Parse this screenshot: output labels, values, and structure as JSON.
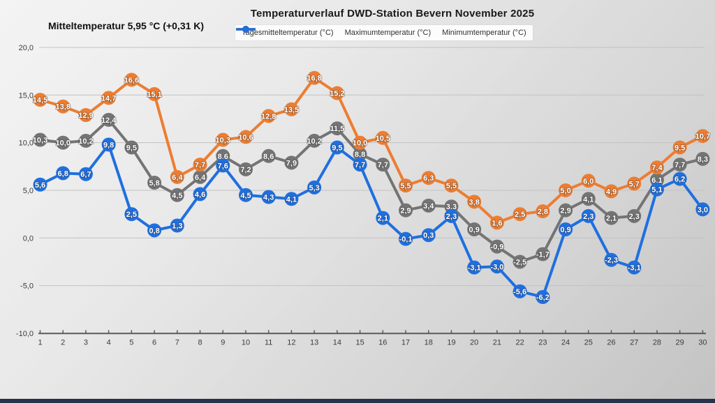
{
  "header": {
    "title": "Temperaturverlauf DWD-Station Bevern November 2025",
    "annotation": "Mitteltemperatur 5,95 °C (+0,31 K)"
  },
  "chart_data": {
    "type": "line",
    "title": "Temperaturverlauf DWD-Station Bevern November 2025",
    "annotation": "Mitteltemperatur 5,95 °C (+0,31 K)",
    "xlabel": "",
    "ylabel": "",
    "x": [
      1,
      2,
      3,
      4,
      5,
      6,
      7,
      8,
      9,
      10,
      11,
      12,
      13,
      14,
      15,
      16,
      17,
      18,
      19,
      20,
      21,
      22,
      23,
      24,
      25,
      26,
      27,
      28,
      29,
      30
    ],
    "series": [
      {
        "id": "mean",
        "name": "Tagesmitteltemperatur (°C)",
        "color": "#747474",
        "values": [
          10.3,
          10.0,
          10.2,
          12.4,
          9.5,
          5.8,
          4.5,
          6.4,
          8.6,
          7.2,
          8.6,
          7.9,
          10.2,
          11.5,
          8.8,
          7.7,
          2.9,
          3.4,
          3.3,
          0.9,
          -0.9,
          -2.5,
          -1.7,
          2.9,
          4.1,
          2.1,
          2.3,
          6.1,
          7.7,
          8.3
        ]
      },
      {
        "id": "max",
        "name": "Maximumtemperatur (°C)",
        "color": "#ED7D31",
        "values": [
          14.5,
          13.8,
          12.9,
          14.7,
          16.6,
          15.1,
          6.4,
          7.7,
          10.3,
          10.6,
          12.8,
          13.5,
          16.8,
          15.2,
          10.0,
          10.5,
          5.5,
          6.3,
          5.5,
          3.8,
          1.6,
          2.5,
          2.8,
          5.0,
          6.0,
          4.9,
          5.7,
          7.4,
          9.5,
          10.7
        ]
      },
      {
        "id": "min",
        "name": "Minimumtemperatur (°C)",
        "color": "#1F6FE0",
        "values": [
          5.6,
          6.8,
          6.7,
          9.8,
          2.5,
          0.8,
          1.3,
          4.6,
          7.6,
          4.5,
          4.3,
          4.1,
          5.3,
          9.5,
          7.7,
          2.1,
          -0.1,
          0.3,
          2.3,
          -3.1,
          -3.0,
          -5.6,
          -6.2,
          0.9,
          2.3,
          -2.3,
          -3.1,
          5.1,
          6.2,
          3.0
        ]
      }
    ],
    "y_axis": {
      "ticks": [
        20,
        15,
        10,
        5,
        0,
        -5,
        -10
      ],
      "tick_labels": [
        "20,0",
        "15,0",
        "10,0",
        "5,0",
        "0,0",
        "-5,0",
        "-10,0"
      ],
      "ylim": [
        -10,
        20
      ]
    },
    "x_axis": {
      "tick_labels": [
        "1",
        "2",
        "3",
        "4",
        "5",
        "6",
        "7",
        "8",
        "9",
        "10",
        "11",
        "12",
        "13",
        "14",
        "15",
        "16",
        "17",
        "18",
        "19",
        "20",
        "21",
        "22",
        "23",
        "24",
        "25",
        "26",
        "27",
        "28",
        "29",
        "30"
      ]
    },
    "grid": true,
    "legend_position": "top-center",
    "decimal_separator": ","
  }
}
